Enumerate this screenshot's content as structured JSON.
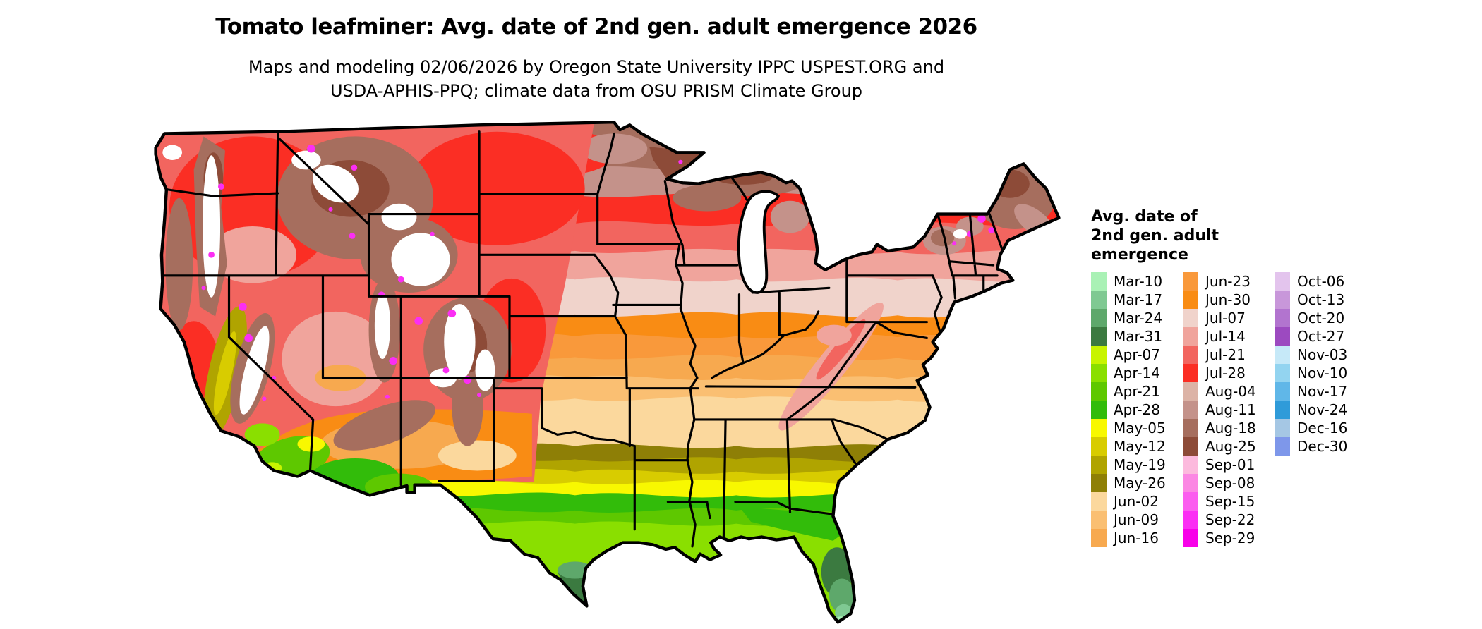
{
  "header": {
    "title": "Tomato leafminer: Avg. date of 2nd gen. adult emergence 2026",
    "subtitle_line1": "Maps and modeling 02/06/2026 by Oregon State University IPPC USPEST.ORG and",
    "subtitle_line2": "USDA-APHIS-PPQ; climate data from OSU PRISM Climate Group"
  },
  "legend": {
    "title_lines": [
      "Avg. date of",
      "2nd gen. adult",
      "emergence"
    ],
    "columns": [
      [
        {
          "label": "Mar-10",
          "color": "#a9f1b5"
        },
        {
          "label": "Mar-17",
          "color": "#7fc992"
        },
        {
          "label": "Mar-24",
          "color": "#5ea86b"
        },
        {
          "label": "Mar-31",
          "color": "#3b7a40"
        },
        {
          "label": "Apr-07",
          "color": "#c8f400"
        },
        {
          "label": "Apr-14",
          "color": "#8adf00"
        },
        {
          "label": "Apr-21",
          "color": "#5ec800"
        },
        {
          "label": "Apr-28",
          "color": "#32bc0a"
        },
        {
          "label": "May-05",
          "color": "#f8f800"
        },
        {
          "label": "May-12",
          "color": "#d8cc00"
        },
        {
          "label": "May-19",
          "color": "#b0a400"
        },
        {
          "label": "May-26",
          "color": "#8e7f06"
        },
        {
          "label": "Jun-02",
          "color": "#fbd89d"
        },
        {
          "label": "Jun-09",
          "color": "#fabf72"
        },
        {
          "label": "Jun-16",
          "color": "#f7a94f"
        }
      ],
      [
        {
          "label": "Jun-23",
          "color": "#f9993b"
        },
        {
          "label": "Jun-30",
          "color": "#f98c14"
        },
        {
          "label": "Jul-07",
          "color": "#f0d3cb"
        },
        {
          "label": "Jul-14",
          "color": "#f0a49c"
        },
        {
          "label": "Jul-21",
          "color": "#f2655f"
        },
        {
          "label": "Jul-28",
          "color": "#fb2e24"
        },
        {
          "label": "Aug-04",
          "color": "#dcb3a6"
        },
        {
          "label": "Aug-11",
          "color": "#c4928a"
        },
        {
          "label": "Aug-18",
          "color": "#a66e5e"
        },
        {
          "label": "Aug-25",
          "color": "#8d4b38"
        },
        {
          "label": "Sep-01",
          "color": "#fcbadd"
        },
        {
          "label": "Sep-08",
          "color": "#fb87e3"
        },
        {
          "label": "Sep-15",
          "color": "#fb5def"
        },
        {
          "label": "Sep-22",
          "color": "#fb2ef4"
        },
        {
          "label": "Sep-29",
          "color": "#f800e9"
        }
      ],
      [
        {
          "label": "Oct-06",
          "color": "#e3c4ed"
        },
        {
          "label": "Oct-13",
          "color": "#c897da"
        },
        {
          "label": "Oct-20",
          "color": "#b274cf"
        },
        {
          "label": "Oct-27",
          "color": "#9c4ac0"
        },
        {
          "label": "Nov-03",
          "color": "#c6e9f8"
        },
        {
          "label": "Nov-10",
          "color": "#93d4f0"
        },
        {
          "label": "Nov-17",
          "color": "#60b7e8"
        },
        {
          "label": "Nov-24",
          "color": "#2f9bd9"
        },
        {
          "label": "Dec-16",
          "color": "#a5c7e4"
        },
        {
          "label": "Dec-30",
          "color": "#7e97ea"
        }
      ]
    ]
  },
  "map": {
    "border_color": "#000000",
    "water_and_nodata_color": "#ffffff"
  }
}
